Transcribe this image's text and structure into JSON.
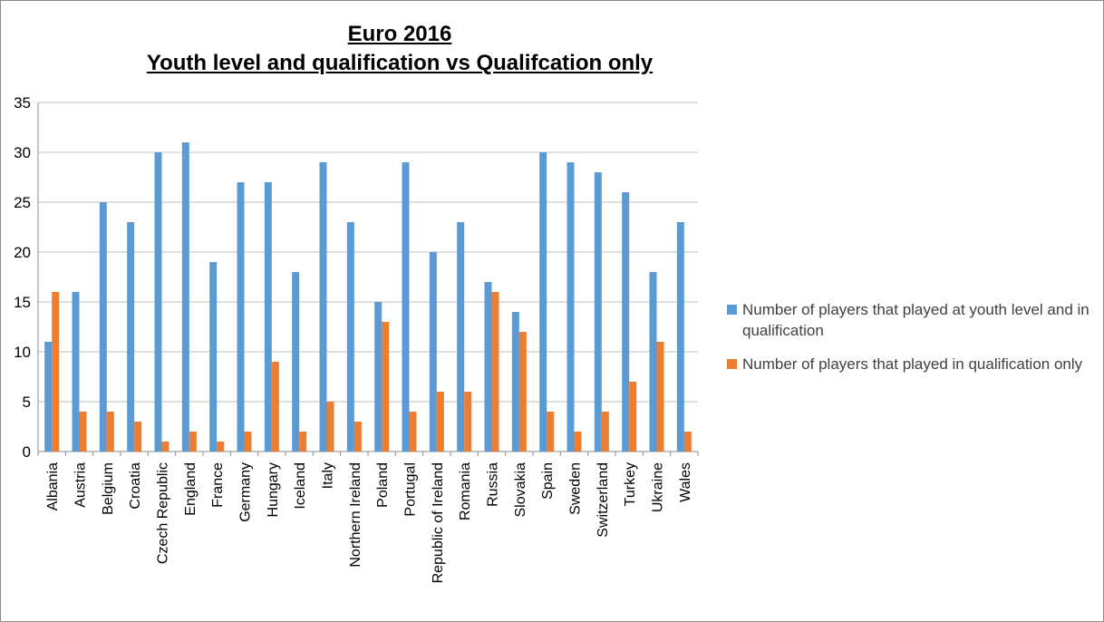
{
  "chart_data": {
    "type": "bar",
    "title": "Euro 2016",
    "subtitle": "Youth level and qualification vs  Qualifcation only",
    "xlabel": "",
    "ylabel": "",
    "ylim": [
      0,
      35
    ],
    "yticks": [
      0,
      5,
      10,
      15,
      20,
      25,
      30,
      35
    ],
    "grid": true,
    "legend_position": "right",
    "categories": [
      "Albania",
      "Austria",
      "Belgium",
      "Croatia",
      "Czech Republic",
      "England",
      "France",
      "Germany",
      "Hungary",
      "Iceland",
      "Italy",
      "Northern Ireland",
      "Poland",
      "Portugal",
      "Republic of Ireland",
      "Romania",
      "Russia",
      "Slovakia",
      "Spain",
      "Sweden",
      "Switzerland",
      "Turkey",
      "Ukraine",
      "Wales"
    ],
    "series": [
      {
        "name": "Number of players that played at youth level and in qualification",
        "color": "#5b9bd5",
        "values": [
          11,
          16,
          25,
          23,
          30,
          31,
          19,
          27,
          27,
          18,
          29,
          23,
          15,
          29,
          20,
          23,
          17,
          14,
          30,
          29,
          28,
          26,
          18,
          23
        ]
      },
      {
        "name": "Number of players that played in qualification only",
        "color": "#ed7d31",
        "values": [
          16,
          4,
          4,
          3,
          1,
          2,
          1,
          2,
          9,
          2,
          5,
          3,
          13,
          4,
          6,
          6,
          16,
          12,
          4,
          2,
          4,
          7,
          11,
          2
        ]
      }
    ]
  }
}
